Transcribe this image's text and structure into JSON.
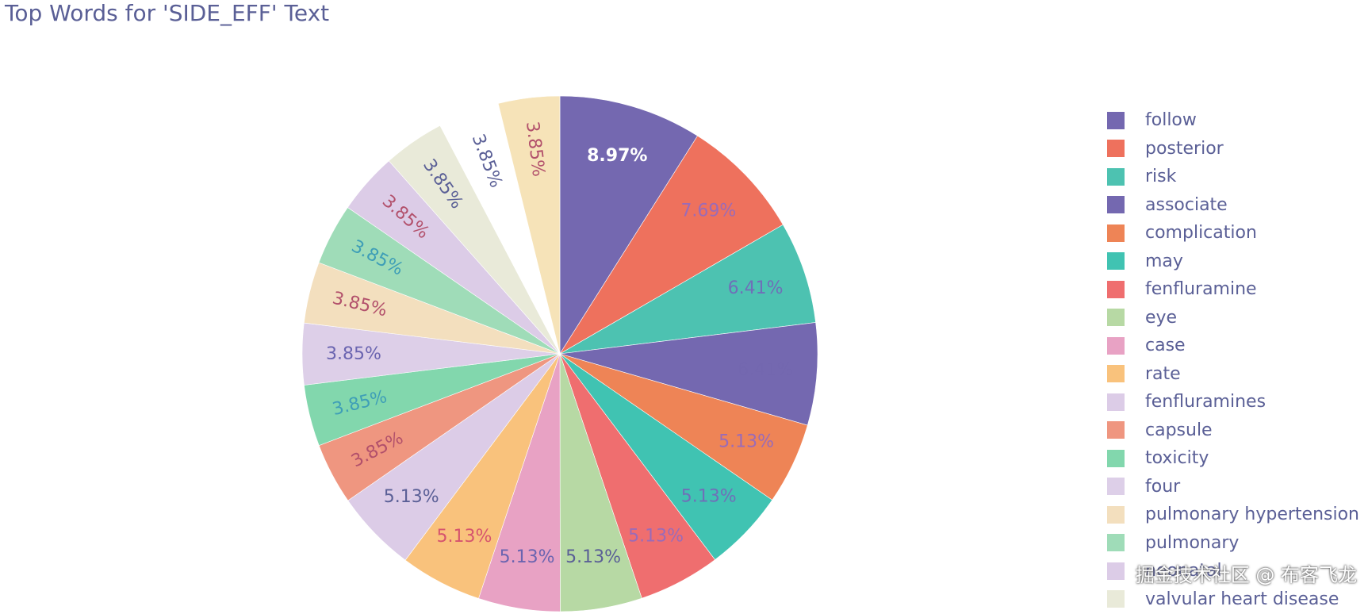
{
  "chart_data": {
    "type": "pie",
    "title": "Top Words for 'SIDE_EFF' Text",
    "legend_position": "right",
    "direction": "clockwise",
    "start": "top",
    "slices": [
      {
        "label": "follow",
        "value": 8.97,
        "text": "8.97%",
        "color": "#7468b0",
        "text_color": "#ffffff",
        "text_visible": true
      },
      {
        "label": "posterior",
        "value": 7.69,
        "text": "7.69%",
        "color": "#ee715d",
        "text_color": "#9a6bb8",
        "text_visible": true
      },
      {
        "label": "risk",
        "value": 6.41,
        "text": "6.41%",
        "color": "#4dc2b1",
        "text_color": "#6f6fb8",
        "text_visible": true
      },
      {
        "label": "associate",
        "value": 6.41,
        "text": "6.41%",
        "color": "#7468b0",
        "text_color": "#7468b0",
        "text_visible": false
      },
      {
        "label": "complication",
        "value": 5.13,
        "text": "5.13%",
        "color": "#ee8456",
        "text_color": "#9a6bb8",
        "text_visible": true
      },
      {
        "label": "may",
        "value": 5.13,
        "text": "5.13%",
        "color": "#40c3b2",
        "text_color": "#6f6fb8",
        "text_visible": true
      },
      {
        "label": "fenfluramine",
        "value": 5.13,
        "text": "5.13%",
        "color": "#ef6e6f",
        "text_color": "#9a6bb8",
        "text_visible": true
      },
      {
        "label": "eye",
        "value": 5.13,
        "text": "5.13%",
        "color": "#b7d9a4",
        "text_color": "#5a5f96",
        "text_visible": true
      },
      {
        "label": "case",
        "value": 5.13,
        "text": "5.13%",
        "color": "#e8a2c4",
        "text_color": "#6a64b0",
        "text_visible": true
      },
      {
        "label": "rate",
        "value": 5.13,
        "text": "5.13%",
        "color": "#f9c27c",
        "text_color": "#d6546e",
        "text_visible": true
      },
      {
        "label": "fenfluramines",
        "value": 5.13,
        "text": "5.13%",
        "color": "#dccce7",
        "text_color": "#5a5f96",
        "text_visible": true
      },
      {
        "label": "capsule",
        "value": 3.85,
        "text": "3.85%",
        "color": "#ef9680",
        "text_color": "#b2506b",
        "text_visible": true
      },
      {
        "label": "toxicity",
        "value": 3.85,
        "text": "3.85%",
        "color": "#82d7ad",
        "text_color": "#3e9eb7",
        "text_visible": true
      },
      {
        "label": "four",
        "value": 3.85,
        "text": "3.85%",
        "color": "#ddcfe8",
        "text_color": "#6a64b0",
        "text_visible": true
      },
      {
        "label": "pulmonary hypertension",
        "value": 3.85,
        "text": "3.85%",
        "color": "#f3dfbe",
        "text_color": "#b2506b",
        "text_visible": true
      },
      {
        "label": "pulmonary",
        "value": 3.85,
        "text": "3.85%",
        "color": "#9fdcb8",
        "text_color": "#3e9eb7",
        "text_visible": true
      },
      {
        "label": "neonatal",
        "value": 3.85,
        "text": "3.85%",
        "color": "#dccce7",
        "text_color": "#b2506b",
        "text_visible": true
      },
      {
        "label": "valvular heart disease",
        "value": 3.85,
        "text": "3.85%",
        "color": "#e9ead9",
        "text_color": "#5a5f96",
        "text_visible": true
      },
      {
        "label": "",
        "value": 3.85,
        "text": "3.85%",
        "color": "#ffffff",
        "text_color": "#5a5f96",
        "text_visible": true
      },
      {
        "label": "",
        "value": 3.85,
        "text": "3.85%",
        "color": "#f6e3b8",
        "text_color": "#b2506b",
        "text_visible": true
      }
    ]
  },
  "watermark": "掘金技术社区 @ 布客飞龙"
}
